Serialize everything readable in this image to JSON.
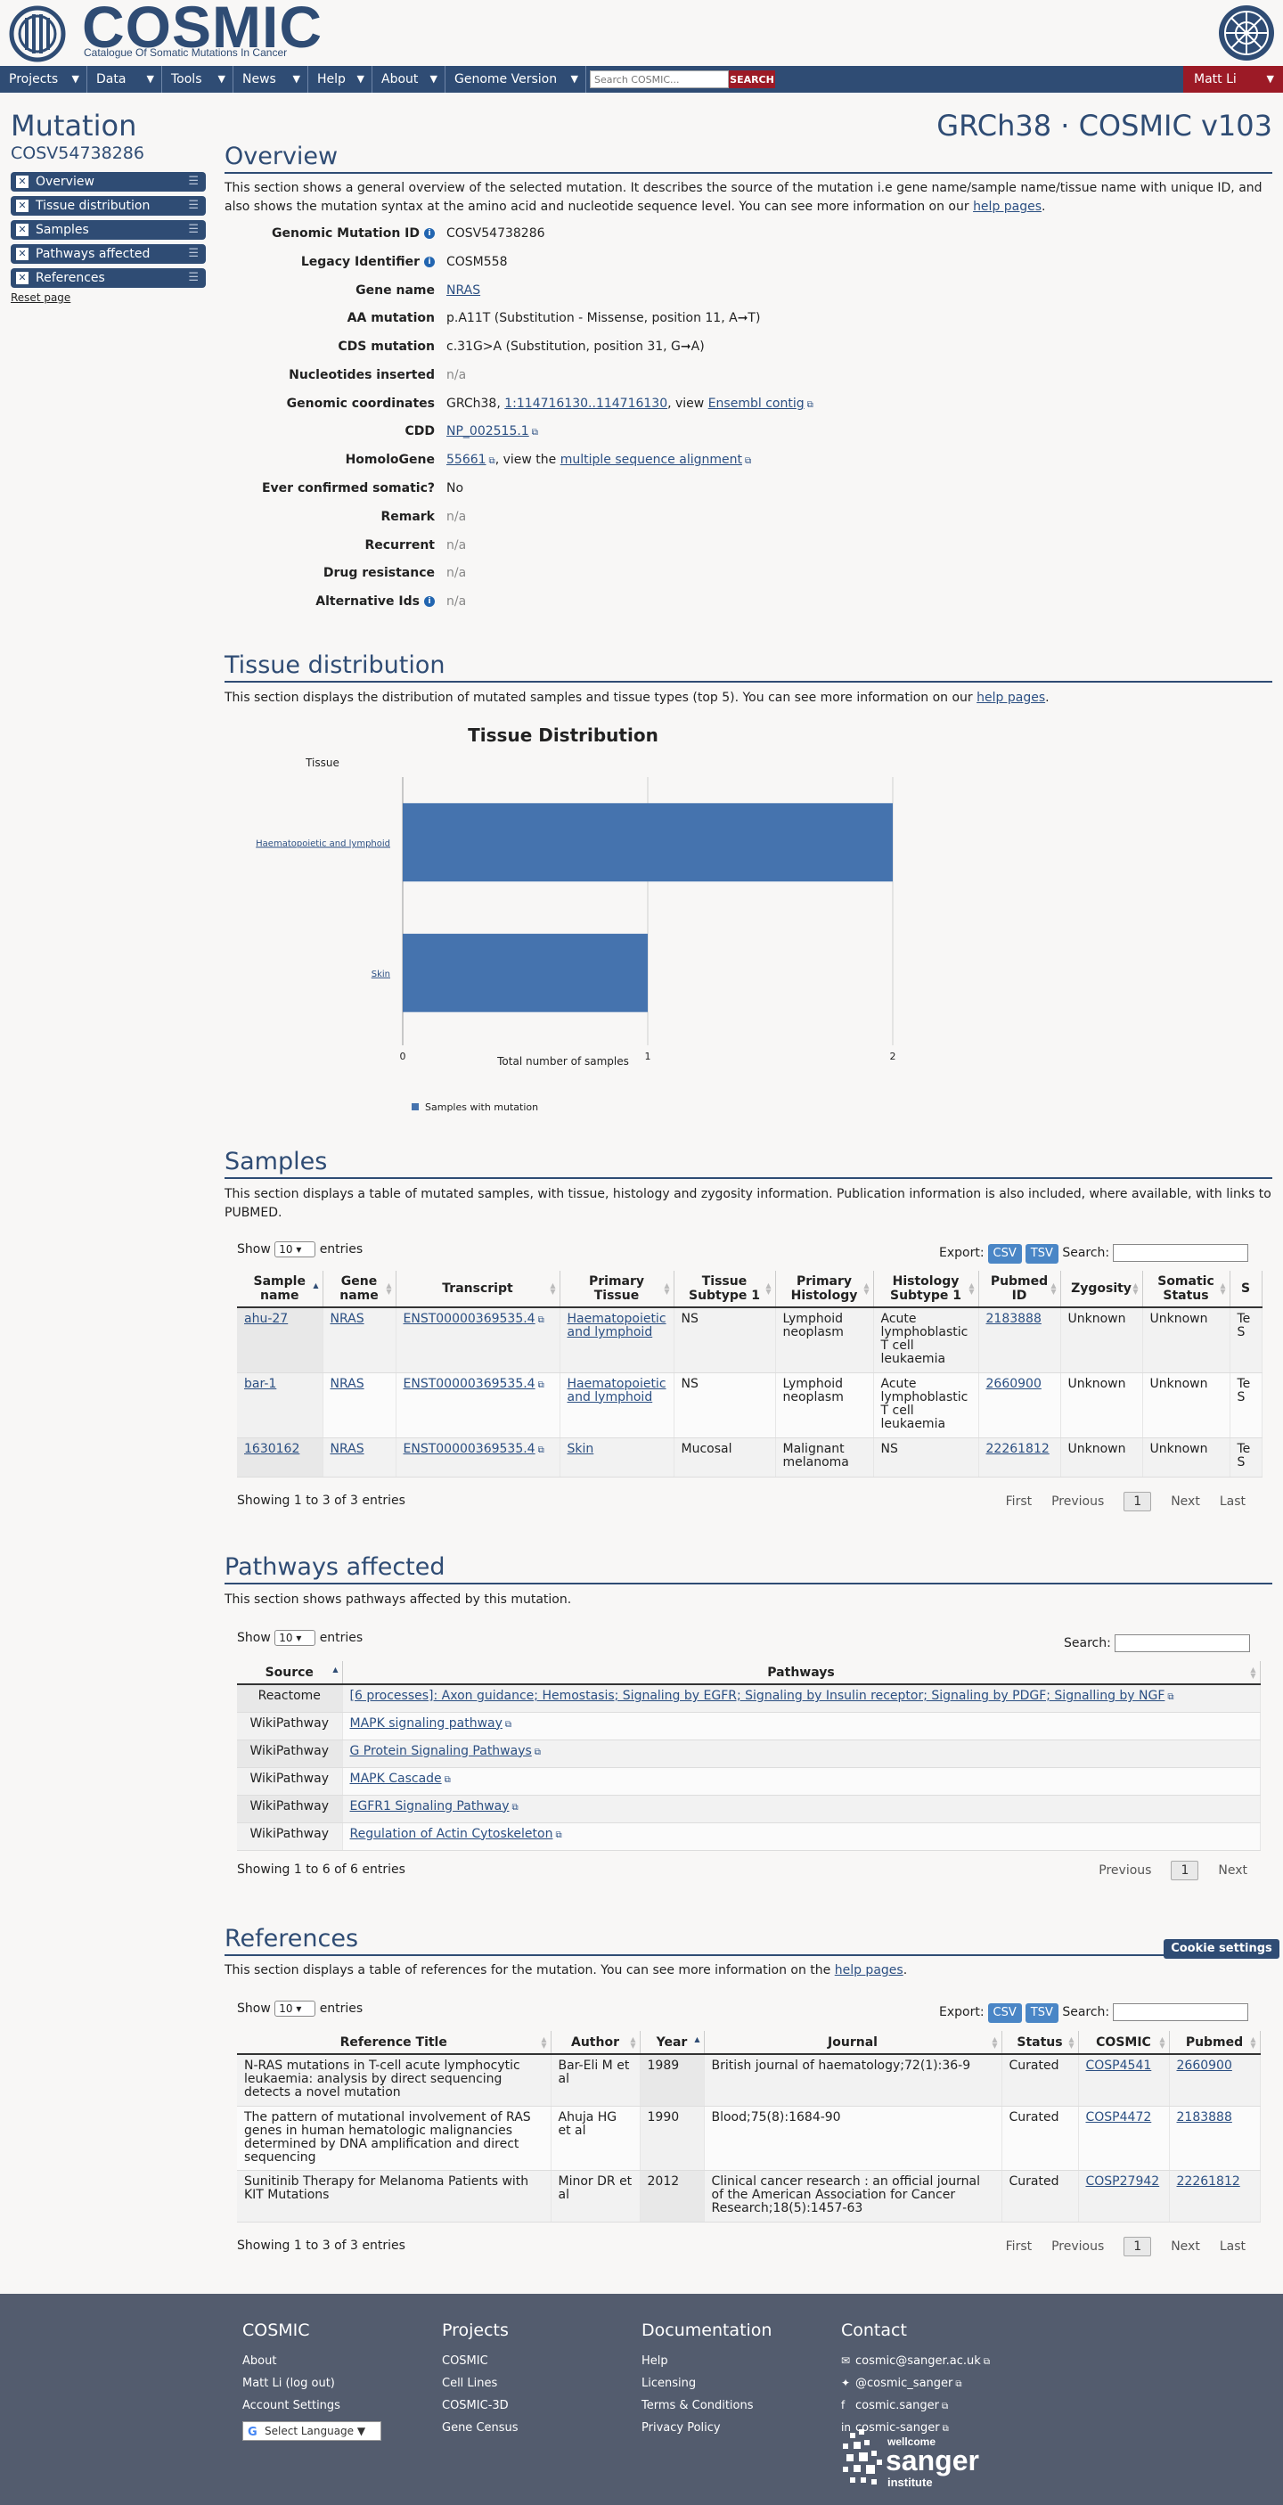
{
  "header": {
    "logo_text": "COSMIC",
    "tagline": "Catalogue Of Somatic Mutations In Cancer"
  },
  "nav": {
    "items": [
      "Projects",
      "Data",
      "Tools",
      "News",
      "Help",
      "About",
      "Genome Version"
    ],
    "search_placeholder": "Search COSMIC...",
    "search_button": "SEARCH",
    "user": "Matt Li"
  },
  "sidebar": {
    "title": "Mutation",
    "mutation_id": "COSV54738286",
    "sections": [
      "Overview",
      "Tissue distribution",
      "Samples",
      "Pathways affected",
      "References"
    ],
    "reset": "Reset page"
  },
  "version_heading": "GRCh38 · COSMIC v103",
  "overview": {
    "heading": "Overview",
    "intro": "This section shows a general overview of the selected mutation. It describes the source of the mutation i.e gene name/sample name/tissue name with unique ID, and also shows the mutation syntax at the amino acid and nucleotide sequence level. You can see more information on our ",
    "help_link": "help pages",
    "intro_end": ".",
    "fields": {
      "genomic_mutation_id_label": "Genomic Mutation ID",
      "genomic_mutation_id": "COSV54738286",
      "legacy_identifier_label": "Legacy Identifier",
      "legacy_identifier": "COSM558",
      "gene_name_label": "Gene name",
      "gene_name": "NRAS",
      "aa_mutation_label": "AA mutation",
      "aa_mutation": "p.A11T (Substitution - Missense, position 11, A➞T)",
      "cds_mutation_label": "CDS mutation",
      "cds_mutation": "c.31G>A (Substitution, position 31, G➞A)",
      "nucleotides_inserted_label": "Nucleotides inserted",
      "nucleotides_inserted": "n/a",
      "genomic_coordinates_label": "Genomic coordinates",
      "genomic_coordinates_prefix": "GRCh38, ",
      "genomic_coordinates_link": "1:114716130..114716130",
      "genomic_coordinates_mid": ", view ",
      "genomic_coordinates_ensembl": "Ensembl contig",
      "cdd_label": "CDD",
      "cdd": "NP_002515.1",
      "homologene_label": "HomoloGene",
      "homologene": "55661",
      "homologene_mid": ", view the ",
      "homologene_msa": "multiple sequence alignment",
      "ever_confirmed_label": "Ever confirmed somatic?",
      "ever_confirmed": "No",
      "remark_label": "Remark",
      "remark": "n/a",
      "recurrent_label": "Recurrent",
      "recurrent": "n/a",
      "drug_resistance_label": "Drug resistance",
      "drug_resistance": "n/a",
      "alternative_ids_label": "Alternative Ids",
      "alternative_ids": "n/a"
    }
  },
  "tissue": {
    "heading": "Tissue distribution",
    "intro": "This section displays the distribution of mutated samples and tissue types (top 5). You can see more information on our ",
    "help_link": "help pages",
    "intro_end": "."
  },
  "chart_data": {
    "type": "bar",
    "orientation": "horizontal",
    "title": "Tissue Distribution",
    "ylabel": "Tissue",
    "xlabel": "Total number of samples",
    "categories": [
      "Haematopoietic and lymphoid",
      "Skin"
    ],
    "series": [
      {
        "name": "Samples with mutation",
        "values": [
          2,
          1
        ],
        "color": "#4573ae"
      }
    ],
    "xlim": [
      0,
      2
    ],
    "xticks": [
      0,
      1,
      2
    ],
    "grid": true,
    "legend": "bottom-left"
  },
  "samples": {
    "heading": "Samples",
    "intro": "This section displays a table of mutated samples, with tissue, histology and zygosity information. Publication information is also included, where available, with links to PUBMED.",
    "show": "Show",
    "entries_count": "10",
    "entries": "entries",
    "export": "Export:",
    "csv": "CSV",
    "tsv": "TSV",
    "search": "Search:",
    "columns": [
      "Sample name",
      "Gene name",
      "Transcript",
      "Primary Tissue",
      "Tissue Subtype 1",
      "Primary Histology",
      "Histology Subtype 1",
      "Pubmed ID",
      "Zygosity",
      "Somatic Status",
      "S"
    ],
    "rows": [
      {
        "sample": "ahu-27",
        "gene": "NRAS",
        "transcript": "ENST00000369535.4",
        "tissue": "Haematopoietic and lymphoid",
        "subtype": "NS",
        "histology": "Lymphoid neoplasm",
        "hist_subtype": "Acute lymphoblastic T cell leukaemia",
        "pubmed": "2183888",
        "zygosity": "Unknown",
        "status": "Unknown",
        "extra": "Te S"
      },
      {
        "sample": "bar-1",
        "gene": "NRAS",
        "transcript": "ENST00000369535.4",
        "tissue": "Haematopoietic and lymphoid",
        "subtype": "NS",
        "histology": "Lymphoid neoplasm",
        "hist_subtype": "Acute lymphoblastic T cell leukaemia",
        "pubmed": "2660900",
        "zygosity": "Unknown",
        "status": "Unknown",
        "extra": "Te S"
      },
      {
        "sample": "1630162",
        "gene": "NRAS",
        "transcript": "ENST00000369535.4",
        "tissue": "Skin",
        "subtype": "Mucosal",
        "histology": "Malignant melanoma",
        "hist_subtype": "NS",
        "pubmed": "22261812",
        "zygosity": "Unknown",
        "status": "Unknown",
        "extra": "Te S"
      }
    ],
    "showing": "Showing 1 to 3 of 3 entries",
    "pager": [
      "First",
      "Previous",
      "1",
      "Next",
      "Last"
    ]
  },
  "pathways": {
    "heading": "Pathways affected",
    "intro": "This section shows pathways affected by this mutation.",
    "show": "Show",
    "entries_count": "10",
    "entries": "entries",
    "search": "Search:",
    "columns": [
      "Source",
      "Pathways"
    ],
    "rows": [
      {
        "source": "Reactome",
        "pathway": "[6 processes]: Axon guidance; Hemostasis; Signaling by EGFR; Signaling by Insulin receptor; Signaling by PDGF; Signalling by NGF"
      },
      {
        "source": "WikiPathway",
        "pathway": "MAPK signaling pathway"
      },
      {
        "source": "WikiPathway",
        "pathway": "G Protein Signaling Pathways"
      },
      {
        "source": "WikiPathway",
        "pathway": "MAPK Cascade"
      },
      {
        "source": "WikiPathway",
        "pathway": "EGFR1 Signaling Pathway"
      },
      {
        "source": "WikiPathway",
        "pathway": "Regulation of Actin Cytoskeleton"
      }
    ],
    "showing": "Showing 1 to 6 of 6 entries",
    "pager": [
      "Previous",
      "1",
      "Next"
    ]
  },
  "references": {
    "heading": "References",
    "intro": "This section displays a table of references for the mutation. You can see more information on the ",
    "help_link": "help pages",
    "intro_end": ".",
    "show": "Show",
    "entries_count": "10",
    "entries": "entries",
    "export": "Export:",
    "csv": "CSV",
    "tsv": "TSV",
    "search": "Search:",
    "columns": [
      "Reference Title",
      "Author",
      "Year",
      "Journal",
      "Status",
      "COSMIC",
      "Pubmed"
    ],
    "rows": [
      {
        "title": "N-RAS mutations in T-cell acute lymphocytic leukaemia: analysis by direct sequencing detects a novel mutation",
        "author": "Bar-Eli M et al",
        "year": "1989",
        "journal": "British journal of haematology;72(1):36-9",
        "status": "Curated",
        "cosmic": "COSP4541",
        "pubmed": "2660900"
      },
      {
        "title": "The pattern of mutational involvement of RAS genes in human hematologic malignancies determined by DNA amplification and direct sequencing",
        "author": "Ahuja HG et al",
        "year": "1990",
        "journal": "Blood;75(8):1684-90",
        "status": "Curated",
        "cosmic": "COSP4472",
        "pubmed": "2183888"
      },
      {
        "title": "Sunitinib Therapy for Melanoma Patients with KIT Mutations",
        "author": "Minor DR et al",
        "year": "2012",
        "journal": "Clinical cancer research : an official journal of the American Association for Cancer Research;18(5):1457-63",
        "status": "Curated",
        "cosmic": "COSP27942",
        "pubmed": "22261812"
      }
    ],
    "showing": "Showing 1 to 3 of 3 entries",
    "pager": [
      "First",
      "Previous",
      "1",
      "Next",
      "Last"
    ]
  },
  "cookie_settings": "Cookie settings",
  "footer": {
    "cosmic": {
      "heading": "COSMIC",
      "links": [
        "About",
        "Matt Li (log out)",
        "Account Settings"
      ],
      "language": "Select Language"
    },
    "projects": {
      "heading": "Projects",
      "links": [
        "COSMIC",
        "Cell Lines",
        "COSMIC-3D",
        "Gene Census"
      ]
    },
    "documentation": {
      "heading": "Documentation",
      "links": [
        "Help",
        "Licensing",
        "Terms & Conditions",
        "Privacy Policy"
      ]
    },
    "contact": {
      "heading": "Contact",
      "links": [
        "cosmic@sanger.ac.uk",
        "@cosmic_sanger",
        "cosmic.sanger",
        "cosmic-sanger"
      ]
    },
    "sanger_top": "wellcome",
    "sanger_main": "sanger",
    "sanger_bottom": "institute"
  }
}
